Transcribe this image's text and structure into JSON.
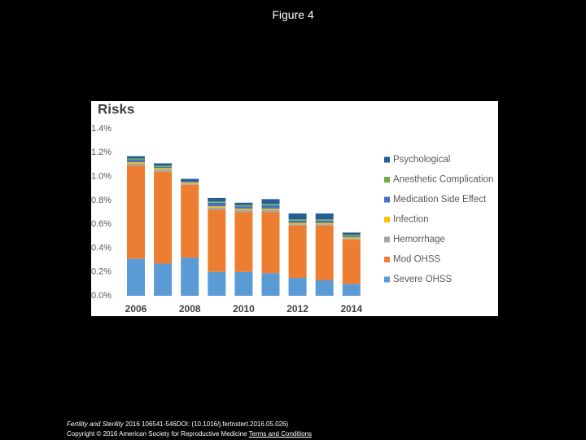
{
  "title": "Figure 4",
  "chart_data": {
    "type": "stacked_bar",
    "title": "Risks",
    "categories": [
      "2006",
      null,
      "2008",
      null,
      "2010",
      null,
      "2012",
      null,
      "2014"
    ],
    "series": [
      {
        "name": "Severe OHSS",
        "color": "#5b9bd5",
        "values": [
          0.31,
          0.27,
          0.32,
          0.2,
          0.2,
          0.19,
          0.15,
          0.13,
          0.1
        ]
      },
      {
        "name": "Mod OHSS",
        "color": "#ed7d31",
        "values": [
          0.78,
          0.77,
          0.61,
          0.52,
          0.5,
          0.51,
          0.44,
          0.46,
          0.37
        ]
      },
      {
        "name": "Hemorrhage",
        "color": "#a5a5a5",
        "values": [
          0.02,
          0.02,
          0.01,
          0.02,
          0.02,
          0.02,
          0.01,
          0.01,
          0.01
        ]
      },
      {
        "name": "Infection",
        "color": "#ffc000",
        "values": [
          0.01,
          0.01,
          0.01,
          0.01,
          0.01,
          0.01,
          0.01,
          0.01,
          0.01
        ]
      },
      {
        "name": "Medication Side Effect",
        "color": "#4472c4",
        "values": [
          0.02,
          0.01,
          0.01,
          0.03,
          0.02,
          0.03,
          0.02,
          0.02,
          0.01
        ]
      },
      {
        "name": "Anesthetic Complication",
        "color": "#70ad47",
        "values": [
          0.01,
          0.01,
          0,
          0.01,
          0.01,
          0.01,
          0.01,
          0.01,
          0.01
        ]
      },
      {
        "name": "Psychological",
        "color": "#255e91",
        "values": [
          0.02,
          0.02,
          0.02,
          0.03,
          0.02,
          0.04,
          0.05,
          0.05,
          0.02
        ]
      }
    ],
    "ylim": [
      0,
      1.4
    ],
    "yticks": [
      {
        "value": 0,
        "label": "0.0%"
      },
      {
        "value": 0.2,
        "label": "0.2%"
      },
      {
        "value": 0.4,
        "label": "0.4%"
      },
      {
        "value": 0.6,
        "label": "0.6%"
      },
      {
        "value": 0.8,
        "label": "0.8%"
      },
      {
        "value": 1.0,
        "label": "1.0%"
      },
      {
        "value": 1.2,
        "label": "1.2%"
      },
      {
        "value": 1.4,
        "label": "1.4%"
      }
    ],
    "grid": false,
    "legend": "right"
  },
  "footer": {
    "journal": "Fertility and Sterility",
    "citation": " 2016 106541-546DOI: (10.1016/j.fertnstert.2016.05.026) ",
    "copyright": "Copyright © 2016 American Society for Reproductive Medicine",
    "link": "Terms and Conditions"
  }
}
